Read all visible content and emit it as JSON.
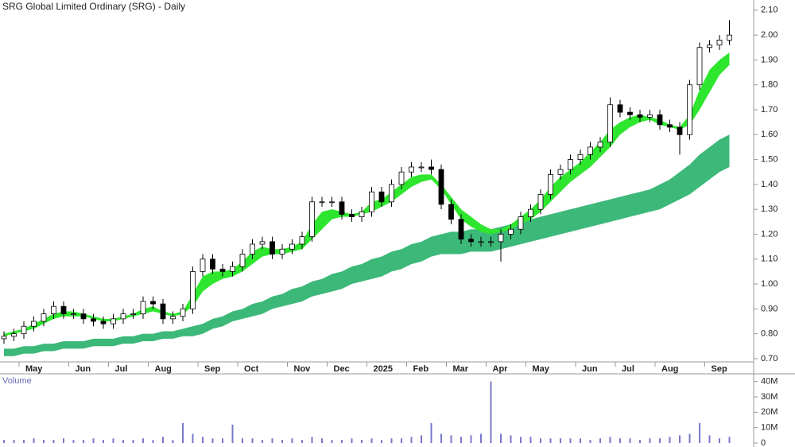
{
  "chart_data": [
    {
      "type": "candlestick",
      "title": "SRG Global Limited Ordinary (SRG) - Daily",
      "categories": [
        null,
        null,
        "May",
        null,
        null,
        null,
        null,
        "Jun",
        null,
        null,
        null,
        "Jul",
        null,
        null,
        null,
        "Aug",
        null,
        null,
        null,
        null,
        "Sep",
        null,
        null,
        null,
        "Oct",
        null,
        null,
        null,
        null,
        "Nov",
        null,
        null,
        null,
        "Dec",
        null,
        null,
        null,
        "2025",
        null,
        null,
        null,
        "Feb",
        null,
        null,
        null,
        "Mar",
        null,
        null,
        null,
        "Apr",
        null,
        null,
        null,
        "May",
        null,
        null,
        null,
        null,
        "Jun",
        null,
        null,
        null,
        "Jul",
        null,
        null,
        null,
        "Aug",
        null,
        null,
        null,
        null,
        "Sep",
        null,
        null
      ],
      "open": [
        0.78,
        0.79,
        0.8,
        0.83,
        0.85,
        0.88,
        0.91,
        0.88,
        0.88,
        0.86,
        0.85,
        0.84,
        0.86,
        0.88,
        0.88,
        0.93,
        0.92,
        0.86,
        0.87,
        0.9,
        1.05,
        1.1,
        1.06,
        1.05,
        1.07,
        1.12,
        1.16,
        1.17,
        1.12,
        1.14,
        1.16,
        1.19,
        1.33,
        1.33,
        1.33,
        1.28,
        1.27,
        1.29,
        1.37,
        1.33,
        1.4,
        1.45,
        1.47,
        1.47,
        1.46,
        1.32,
        1.26,
        1.18,
        1.17,
        1.17,
        1.17,
        1.2,
        1.22,
        1.27,
        1.3,
        1.36,
        1.44,
        1.46,
        1.5,
        1.52,
        1.55,
        1.57,
        1.72,
        1.69,
        1.68,
        1.67,
        1.68,
        1.64,
        1.63,
        1.6,
        1.8,
        1.95,
        1.96,
        1.98
      ],
      "high": [
        0.81,
        0.82,
        0.85,
        0.87,
        0.9,
        0.93,
        0.93,
        0.9,
        0.9,
        0.88,
        0.87,
        0.88,
        0.9,
        0.9,
        0.95,
        0.95,
        0.94,
        0.89,
        0.92,
        1.07,
        1.12,
        1.12,
        1.08,
        1.09,
        1.14,
        1.18,
        1.19,
        1.19,
        1.16,
        1.18,
        1.21,
        1.35,
        1.35,
        1.35,
        1.35,
        1.3,
        1.31,
        1.39,
        1.39,
        1.42,
        1.47,
        1.49,
        1.49,
        1.5,
        1.48,
        1.34,
        1.28,
        1.2,
        1.19,
        1.19,
        1.22,
        1.24,
        1.29,
        1.32,
        1.38,
        1.46,
        1.48,
        1.52,
        1.54,
        1.57,
        1.59,
        1.75,
        1.74,
        1.71,
        1.7,
        1.7,
        1.7,
        1.66,
        1.65,
        1.82,
        1.97,
        1.98,
        2.0,
        2.06
      ],
      "low": [
        0.76,
        0.77,
        0.78,
        0.81,
        0.83,
        0.86,
        0.86,
        0.86,
        0.84,
        0.83,
        0.82,
        0.82,
        0.84,
        0.86,
        0.86,
        0.9,
        0.84,
        0.84,
        0.85,
        0.88,
        1.03,
        1.04,
        1.03,
        1.03,
        1.05,
        1.1,
        1.14,
        1.1,
        1.1,
        1.12,
        1.14,
        1.17,
        1.31,
        1.31,
        1.26,
        1.25,
        1.25,
        1.27,
        1.31,
        1.31,
        1.38,
        1.43,
        1.45,
        1.44,
        1.3,
        1.24,
        1.16,
        1.15,
        1.15,
        1.15,
        1.09,
        1.18,
        1.2,
        1.25,
        1.28,
        1.34,
        1.42,
        1.44,
        1.48,
        1.5,
        1.53,
        1.55,
        1.67,
        1.66,
        1.65,
        1.65,
        1.62,
        1.61,
        1.52,
        1.58,
        1.78,
        1.93,
        1.94,
        1.96
      ],
      "close": [
        0.79,
        0.8,
        0.83,
        0.85,
        0.88,
        0.91,
        0.88,
        0.88,
        0.86,
        0.85,
        0.84,
        0.86,
        0.88,
        0.88,
        0.93,
        0.92,
        0.86,
        0.87,
        0.9,
        1.05,
        1.1,
        1.06,
        1.05,
        1.07,
        1.12,
        1.16,
        1.17,
        1.12,
        1.14,
        1.16,
        1.19,
        1.33,
        1.33,
        1.33,
        1.28,
        1.27,
        1.29,
        1.37,
        1.33,
        1.4,
        1.45,
        1.47,
        1.47,
        1.46,
        1.32,
        1.26,
        1.18,
        1.17,
        1.17,
        1.17,
        1.2,
        1.22,
        1.27,
        1.3,
        1.36,
        1.44,
        1.46,
        1.5,
        1.52,
        1.55,
        1.57,
        1.72,
        1.69,
        1.68,
        1.67,
        1.68,
        1.64,
        1.63,
        1.6,
        1.8,
        1.95,
        1.96,
        1.98,
        2.0
      ],
      "long_band": {
        "color": "#3cb878",
        "upper": [
          0.74,
          0.74,
          0.75,
          0.75,
          0.76,
          0.76,
          0.77,
          0.77,
          0.77,
          0.78,
          0.78,
          0.78,
          0.79,
          0.79,
          0.8,
          0.8,
          0.81,
          0.81,
          0.82,
          0.83,
          0.84,
          0.86,
          0.87,
          0.89,
          0.9,
          0.92,
          0.93,
          0.95,
          0.96,
          0.98,
          0.99,
          1.01,
          1.02,
          1.04,
          1.05,
          1.07,
          1.08,
          1.1,
          1.11,
          1.13,
          1.14,
          1.16,
          1.17,
          1.19,
          1.2,
          1.21,
          1.21,
          1.22,
          1.22,
          1.22,
          1.23,
          1.24,
          1.25,
          1.26,
          1.27,
          1.28,
          1.29,
          1.3,
          1.31,
          1.32,
          1.33,
          1.34,
          1.35,
          1.36,
          1.37,
          1.38,
          1.4,
          1.42,
          1.45,
          1.48,
          1.52,
          1.55,
          1.58,
          1.6
        ],
        "lower": [
          0.71,
          0.71,
          0.72,
          0.72,
          0.73,
          0.73,
          0.74,
          0.74,
          0.74,
          0.75,
          0.75,
          0.75,
          0.76,
          0.76,
          0.77,
          0.77,
          0.78,
          0.78,
          0.79,
          0.79,
          0.8,
          0.82,
          0.83,
          0.85,
          0.86,
          0.87,
          0.88,
          0.9,
          0.91,
          0.92,
          0.93,
          0.95,
          0.96,
          0.97,
          0.98,
          1.0,
          1.01,
          1.02,
          1.03,
          1.05,
          1.06,
          1.08,
          1.09,
          1.11,
          1.12,
          1.12,
          1.12,
          1.13,
          1.13,
          1.13,
          1.14,
          1.15,
          1.16,
          1.17,
          1.18,
          1.19,
          1.2,
          1.21,
          1.22,
          1.23,
          1.24,
          1.25,
          1.26,
          1.27,
          1.28,
          1.29,
          1.3,
          1.32,
          1.34,
          1.36,
          1.39,
          1.42,
          1.45,
          1.47
        ]
      },
      "short_band": {
        "color": "#2ee62e",
        "upper": [
          0.8,
          0.81,
          0.82,
          0.84,
          0.86,
          0.88,
          0.89,
          0.89,
          0.88,
          0.87,
          0.86,
          0.86,
          0.87,
          0.88,
          0.9,
          0.91,
          0.89,
          0.88,
          0.89,
          0.96,
          1.03,
          1.05,
          1.05,
          1.06,
          1.09,
          1.13,
          1.15,
          1.14,
          1.14,
          1.15,
          1.17,
          1.24,
          1.29,
          1.3,
          1.29,
          1.28,
          1.29,
          1.33,
          1.34,
          1.37,
          1.4,
          1.43,
          1.44,
          1.44,
          1.4,
          1.35,
          1.3,
          1.27,
          1.24,
          1.22,
          1.22,
          1.24,
          1.27,
          1.3,
          1.34,
          1.39,
          1.43,
          1.46,
          1.49,
          1.53,
          1.57,
          1.62,
          1.65,
          1.67,
          1.68,
          1.67,
          1.66,
          1.64,
          1.63,
          1.68,
          1.78,
          1.86,
          1.9,
          1.93
        ],
        "lower": [
          0.79,
          0.8,
          0.81,
          0.82,
          0.84,
          0.86,
          0.87,
          0.87,
          0.87,
          0.86,
          0.85,
          0.85,
          0.86,
          0.87,
          0.88,
          0.89,
          0.88,
          0.87,
          0.88,
          0.91,
          0.97,
          1.0,
          1.02,
          1.03,
          1.05,
          1.08,
          1.11,
          1.12,
          1.12,
          1.13,
          1.14,
          1.18,
          1.22,
          1.26,
          1.27,
          1.27,
          1.28,
          1.29,
          1.31,
          1.33,
          1.36,
          1.39,
          1.41,
          1.42,
          1.38,
          1.32,
          1.26,
          1.23,
          1.21,
          1.2,
          1.21,
          1.22,
          1.24,
          1.26,
          1.29,
          1.33,
          1.37,
          1.41,
          1.44,
          1.47,
          1.51,
          1.55,
          1.6,
          1.63,
          1.65,
          1.66,
          1.64,
          1.63,
          1.62,
          1.64,
          1.7,
          1.77,
          1.84,
          1.88
        ]
      },
      "ylim": [
        0.687,
        2.141
      ],
      "yticks": [
        {
          "value": 0.7,
          "label": "0.70"
        },
        {
          "value": 0.8,
          "label": "0.80"
        },
        {
          "value": 0.9,
          "label": "0.90"
        },
        {
          "value": 1.0,
          "label": "1.00"
        },
        {
          "value": 1.1,
          "label": "1.10"
        },
        {
          "value": 1.2,
          "label": "1.20"
        },
        {
          "value": 1.3,
          "label": "1.30"
        },
        {
          "value": 1.4,
          "label": "1.40"
        },
        {
          "value": 1.5,
          "label": "1.50"
        },
        {
          "value": 1.6,
          "label": "1.60"
        },
        {
          "value": 1.7,
          "label": "1.70"
        },
        {
          "value": 1.8,
          "label": "1.80"
        },
        {
          "value": 1.9,
          "label": "1.90"
        },
        {
          "value": 2.0,
          "label": "2.00"
        },
        {
          "value": 2.1,
          "label": "2.10"
        }
      ]
    },
    {
      "type": "bar",
      "title": "Volume",
      "color": "#7878c8",
      "values": [
        2,
        2,
        2,
        3,
        2,
        2,
        3,
        2,
        2,
        3,
        2,
        3,
        2,
        2,
        3,
        2,
        4,
        2,
        13,
        6,
        4,
        3,
        3,
        12,
        3,
        3,
        2,
        3,
        2,
        3,
        2,
        4,
        3,
        2,
        2,
        3,
        2,
        3,
        2,
        3,
        3,
        4,
        5,
        13,
        6,
        5,
        4,
        5,
        6,
        40,
        6,
        5,
        4,
        4,
        3,
        3,
        3,
        3,
        3,
        2,
        3,
        4,
        3,
        3,
        2,
        3,
        3,
        4,
        5,
        6,
        13,
        5,
        3,
        4
      ],
      "ylim": [
        0,
        45
      ],
      "yticks": [
        0,
        {
          "value": 10,
          "label": "10M"
        },
        {
          "value": 20,
          "label": "20M"
        },
        {
          "value": 30,
          "label": "30M"
        },
        {
          "value": 40,
          "label": "40M"
        }
      ]
    }
  ]
}
